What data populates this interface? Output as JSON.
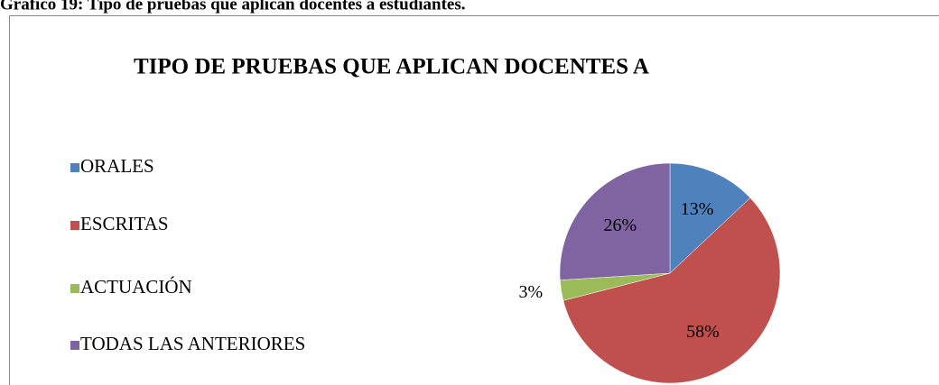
{
  "caption": "Gráfico 19: Tipo de pruebas que aplican docentes a estudiantes.",
  "chart_data": {
    "type": "pie",
    "title": "TIPO DE PRUEBAS QUE APLICAN DOCENTES A",
    "categories": [
      "ORALES",
      "ESCRITAS",
      "ACTUACIÓN",
      "TODAS LAS ANTERIORES"
    ],
    "values": [
      13,
      58,
      3,
      26
    ],
    "value_labels": [
      "13%",
      "58%",
      "3%",
      "26%"
    ],
    "colors": [
      "#4f81bd",
      "#c0504d",
      "#9bbb59",
      "#8064a2"
    ],
    "legend": "left"
  }
}
